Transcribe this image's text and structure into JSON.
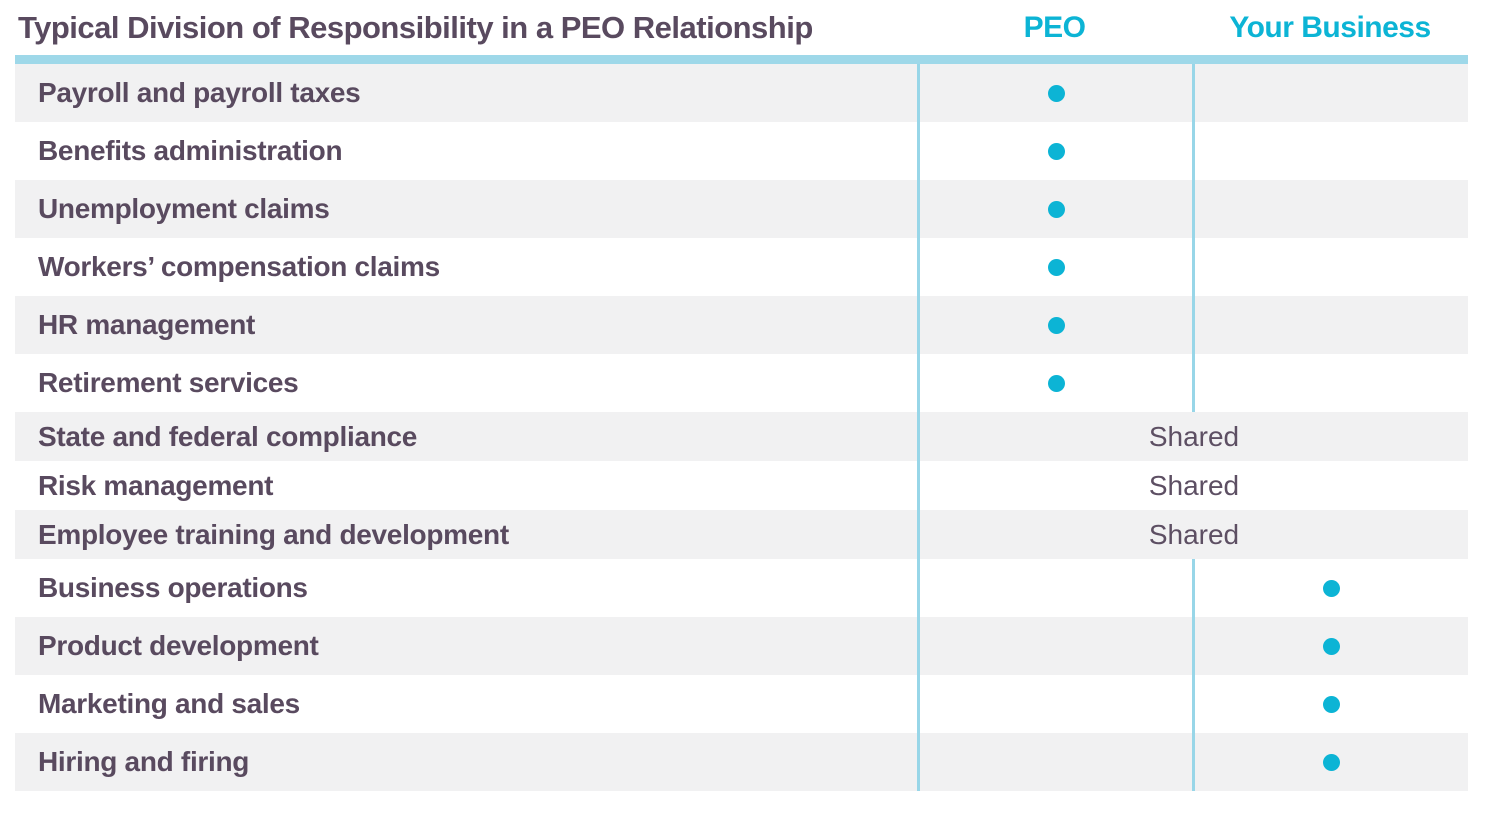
{
  "title": "Typical Division of Responsibility in a PEO Relationship",
  "columns": [
    {
      "label": "PEO"
    },
    {
      "label": "Your Business"
    }
  ],
  "shared_label": "Shared",
  "rows": [
    {
      "label": "Payroll and payroll taxes",
      "responsibility": "peo"
    },
    {
      "label": "Benefits administration",
      "responsibility": "peo"
    },
    {
      "label": "Unemployment claims",
      "responsibility": "peo"
    },
    {
      "label": "Workers’ compensation claims",
      "responsibility": "peo"
    },
    {
      "label": "HR management",
      "responsibility": "peo"
    },
    {
      "label": "Retirement services",
      "responsibility": "peo"
    },
    {
      "label": "State and federal compliance",
      "responsibility": "shared"
    },
    {
      "label": "Risk management",
      "responsibility": "shared"
    },
    {
      "label": "Employee training and development",
      "responsibility": "shared"
    },
    {
      "label": "Business operations",
      "responsibility": "business"
    },
    {
      "label": "Product development",
      "responsibility": "business"
    },
    {
      "label": "Marketing and sales",
      "responsibility": "business"
    },
    {
      "label": "Hiring and firing",
      "responsibility": "business"
    }
  ],
  "colors": {
    "accent": "#0cb4d5",
    "light_blue": "#9ed8e9",
    "line_blue": "#98d6e8",
    "text_purple": "#594a5f",
    "shared_purple": "#5d4f63",
    "row_gray": "#f1f1f2"
  },
  "chart_data": {
    "type": "table",
    "title": "Typical Division of Responsibility in a PEO Relationship",
    "columns": [
      "PEO",
      "Your Business"
    ],
    "legend_position": "top",
    "rows": [
      {
        "label": "Payroll and payroll taxes",
        "PEO": true,
        "Your Business": false,
        "Shared": false
      },
      {
        "label": "Benefits administration",
        "PEO": true,
        "Your Business": false,
        "Shared": false
      },
      {
        "label": "Unemployment claims",
        "PEO": true,
        "Your Business": false,
        "Shared": false
      },
      {
        "label": "Workers’ compensation claims",
        "PEO": true,
        "Your Business": false,
        "Shared": false
      },
      {
        "label": "HR management",
        "PEO": true,
        "Your Business": false,
        "Shared": false
      },
      {
        "label": "Retirement services",
        "PEO": true,
        "Your Business": false,
        "Shared": false
      },
      {
        "label": "State and federal compliance",
        "PEO": false,
        "Your Business": false,
        "Shared": true
      },
      {
        "label": "Risk management",
        "PEO": false,
        "Your Business": false,
        "Shared": true
      },
      {
        "label": "Employee training and development",
        "PEO": false,
        "Your Business": false,
        "Shared": true
      },
      {
        "label": "Business operations",
        "PEO": false,
        "Your Business": true,
        "Shared": false
      },
      {
        "label": "Product development",
        "PEO": false,
        "Your Business": true,
        "Shared": false
      },
      {
        "label": "Marketing and sales",
        "PEO": false,
        "Your Business": true,
        "Shared": false
      },
      {
        "label": "Hiring and firing",
        "PEO": false,
        "Your Business": true,
        "Shared": false
      }
    ]
  }
}
